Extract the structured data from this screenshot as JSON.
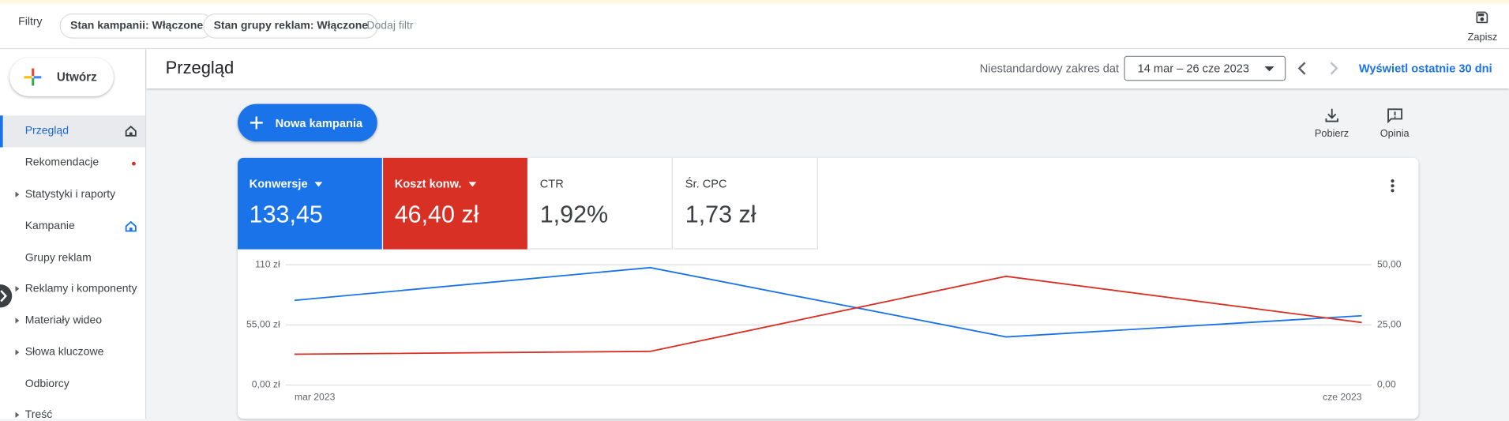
{
  "filters": {
    "label": "Filtry",
    "chips": [
      "Stan kampanii: Włączone",
      "Stan grupy reklam: Włączone"
    ],
    "add": "Dodaj filtr",
    "save": "Zapisz"
  },
  "sidebar": {
    "create": "Utwórz",
    "items": [
      "Przegląd",
      "Rekomendacje",
      "Statystyki i raporty",
      "Kampanie",
      "Grupy reklam",
      "Reklamy i komponenty",
      "Materiały wideo",
      "Słowa kluczowe",
      "Odbiorcy",
      "Treść"
    ]
  },
  "header": {
    "title": "Przegląd",
    "range_label": "Niestandardowy zakres dat",
    "range": "14 mar – 26 cze 2023",
    "last30": "Wyświetl ostatnie 30 dni"
  },
  "actions": {
    "new_campaign": "Nowa kampania",
    "download": "Pobierz",
    "feedback": "Opinia"
  },
  "scorecards": [
    {
      "value": "133,45"
    },
    {
      "value": "46,40 zł"
    },
    {
      "label": "CTR",
      "value": "1,92%"
    },
    {
      "label": "Śr. CPC",
      "value": "1,73 zł"
    }
  ],
  "chart_data": {
    "type": "line",
    "categories": [
      "mar 2023",
      null,
      null,
      "cze 2023"
    ],
    "series": [
      {
        "name": "Konwersje",
        "color": "#1a73e8",
        "axis": "y2",
        "values": [
          35.2,
          48.8,
          20,
          28.8
        ]
      },
      {
        "name": "Koszt konw.",
        "color": "#d93025",
        "values": [
          28.2,
          30.8,
          99.4,
          57.2
        ]
      }
    ],
    "ylim": [
      0,
      110
    ],
    "yticks": [
      {
        "value": 0,
        "label": "0,00 zł"
      },
      {
        "value": 55,
        "label": "55,00 zł"
      },
      {
        "value": 110,
        "label": "110 zł"
      }
    ],
    "y2lim": [
      0,
      50
    ],
    "y2ticks": [
      {
        "value": 0,
        "label": "0,00"
      },
      {
        "value": 25,
        "label": "25,00"
      },
      {
        "value": 50,
        "label": "50,00"
      }
    ],
    "grid": true
  }
}
